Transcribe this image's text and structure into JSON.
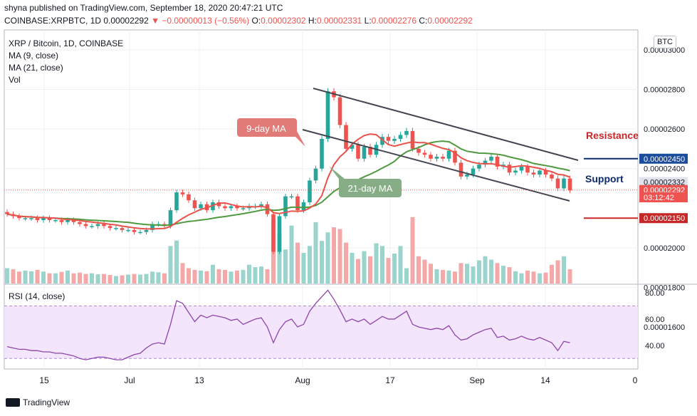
{
  "header": {
    "line1": "shyna published on TradingView.com, September 18, 2020 20:47:21 UTC",
    "symbol": "COINBASE:XRPBTC, 1D",
    "price": "0.00002292",
    "change": "−0.00000013 (−0.56%)",
    "o_label": "O:",
    "o": "0.00002302",
    "h_label": "H:",
    "h": "0.00002331",
    "l_label": "L:",
    "l": "0.00002276",
    "c_label": "C:",
    "c": "0.00002292"
  },
  "legend": {
    "title": "XRP / Bitcoin, 1D, COINBASE",
    "ma9": "MA (9, close)",
    "ma21": "MA (21, close)",
    "vol": "Vol",
    "rsi": "RSI (14, close)"
  },
  "currency_badge": "BTC",
  "branding": "TradingView",
  "annotations": {
    "ma9": "9-day MA",
    "ma21": "21-day MA",
    "resistance": "Resistance",
    "support": "Support"
  },
  "colors": {
    "up": "#26a69a",
    "down": "#ef5350",
    "ma9": "#e8524a",
    "ma21": "#4e9a3f",
    "resistance": "#c62828",
    "support": "#0d2a6b",
    "rsi": "#8e44ad"
  },
  "chart_data": [
    {
      "type": "candlestick",
      "title": "XRP / Bitcoin, 1D, COINBASE",
      "ylim": [
        1.82e-05,
        3.1e-05
      ],
      "y_ticks": [
        "0.00003000",
        "0.00002800",
        "0.00002600",
        "0.00002400",
        "0.00002000",
        "0.00001800",
        "0.00001600"
      ],
      "x_ticks": [
        "15",
        "Jul",
        "13",
        "Aug",
        "17",
        "Sep",
        "14",
        "0"
      ],
      "price_labels": [
        {
          "text": "0.00002450",
          "value": 2.45e-05,
          "color": "#1c4c9c"
        },
        {
          "text": "0.00002332",
          "value": 2.332e-05,
          "color": "#e0e3eb"
        },
        {
          "text": "0.00002292",
          "value": 2.292e-05,
          "color": "#ef5350"
        },
        {
          "text": "03:12:42",
          "value": 2.255e-05,
          "color": "#ef5350"
        },
        {
          "text": "0.00002150",
          "value": 2.15e-05,
          "color": "#c62828"
        }
      ],
      "resistance_level": 2.45e-05,
      "support_level": 2.15e-05,
      "closes": [
        2.17e-05,
        2.16e-05,
        2.15e-05,
        2.15e-05,
        2.15e-05,
        2.14e-05,
        2.15e-05,
        2.14e-05,
        2.14e-05,
        2.13e-05,
        2.14e-05,
        2.13e-05,
        2.12e-05,
        2.11e-05,
        2.11e-05,
        2.12e-05,
        2.11e-05,
        2.1e-05,
        2.1e-05,
        2.09e-05,
        2.09e-05,
        2.08e-05,
        2.08e-05,
        2.09e-05,
        2.12e-05,
        2.12e-05,
        2.11e-05,
        2.19e-05,
        2.28e-05,
        2.27e-05,
        2.24e-05,
        2.2e-05,
        2.22e-05,
        2.19e-05,
        2.23e-05,
        2.21e-05,
        2.2e-05,
        2.21e-05,
        2.2e-05,
        2.2e-05,
        2.21e-05,
        2.21e-05,
        2.22e-05,
        2.17e-05,
        1.98e-05,
        2.16e-05,
        2.26e-05,
        2.26e-05,
        2.19e-05,
        2.23e-05,
        2.34e-05,
        2.4e-05,
        2.55e-05,
        2.79e-05,
        2.76e-05,
        2.62e-05,
        2.5e-05,
        2.52e-05,
        2.45e-05,
        2.51e-05,
        2.47e-05,
        2.52e-05,
        2.56e-05,
        2.54e-05,
        2.55e-05,
        2.57e-05,
        2.59e-05,
        2.5e-05,
        2.48e-05,
        2.47e-05,
        2.45e-05,
        2.46e-05,
        2.45e-05,
        2.49e-05,
        2.43e-05,
        2.36e-05,
        2.37e-05,
        2.4e-05,
        2.42e-05,
        2.44e-05,
        2.46e-05,
        2.41e-05,
        2.42e-05,
        2.38e-05,
        2.39e-05,
        2.41e-05,
        2.38e-05,
        2.37e-05,
        2.39e-05,
        2.37e-05,
        2.35e-05,
        2.3e-05,
        2.35e-05,
        2.29e-05
      ]
    },
    {
      "type": "bar",
      "title": "Vol",
      "values": [
        45,
        42,
        35,
        38,
        36,
        40,
        35,
        30,
        30,
        34,
        38,
        30,
        32,
        28,
        30,
        27,
        28,
        25,
        22,
        24,
        26,
        28,
        26,
        28,
        35,
        33,
        30,
        110,
        126,
        60,
        45,
        40,
        38,
        36,
        55,
        42,
        40,
        35,
        38,
        40,
        55,
        48,
        50,
        42,
        190,
        150,
        100,
        170,
        120,
        90,
        110,
        180,
        125,
        150,
        165,
        160,
        120,
        90,
        72,
        95,
        80,
        118,
        110,
        75,
        88,
        110,
        45,
        195,
        80,
        70,
        58,
        42,
        40,
        38,
        35,
        60,
        58,
        50,
        68,
        80,
        70,
        60,
        52,
        48,
        36,
        30,
        38,
        35,
        30,
        32,
        55,
        68,
        80,
        42
      ]
    },
    {
      "type": "line",
      "title": "RSI (14, close)",
      "ylim": [
        22,
        86
      ],
      "y_ticks": [
        "80.00",
        "60.00",
        "40.00"
      ],
      "values": [
        39,
        38,
        37,
        37,
        36,
        36,
        35,
        35,
        34,
        34,
        33,
        32,
        30,
        29,
        30,
        31,
        31,
        30,
        29,
        29,
        31,
        33,
        34,
        38,
        41,
        42,
        41,
        56,
        74,
        72,
        65,
        58,
        63,
        61,
        63,
        62,
        61,
        59,
        60,
        56,
        58,
        60,
        61,
        54,
        42,
        52,
        58,
        60,
        54,
        56,
        66,
        72,
        77,
        82,
        75,
        67,
        58,
        60,
        58,
        60,
        56,
        59,
        62,
        60,
        60,
        63,
        66,
        56,
        54,
        53,
        52,
        53,
        52,
        55,
        48,
        44,
        45,
        48,
        50,
        52,
        53,
        46,
        47,
        44,
        45,
        47,
        45,
        44,
        46,
        44,
        42,
        36,
        43,
        42
      ]
    }
  ]
}
